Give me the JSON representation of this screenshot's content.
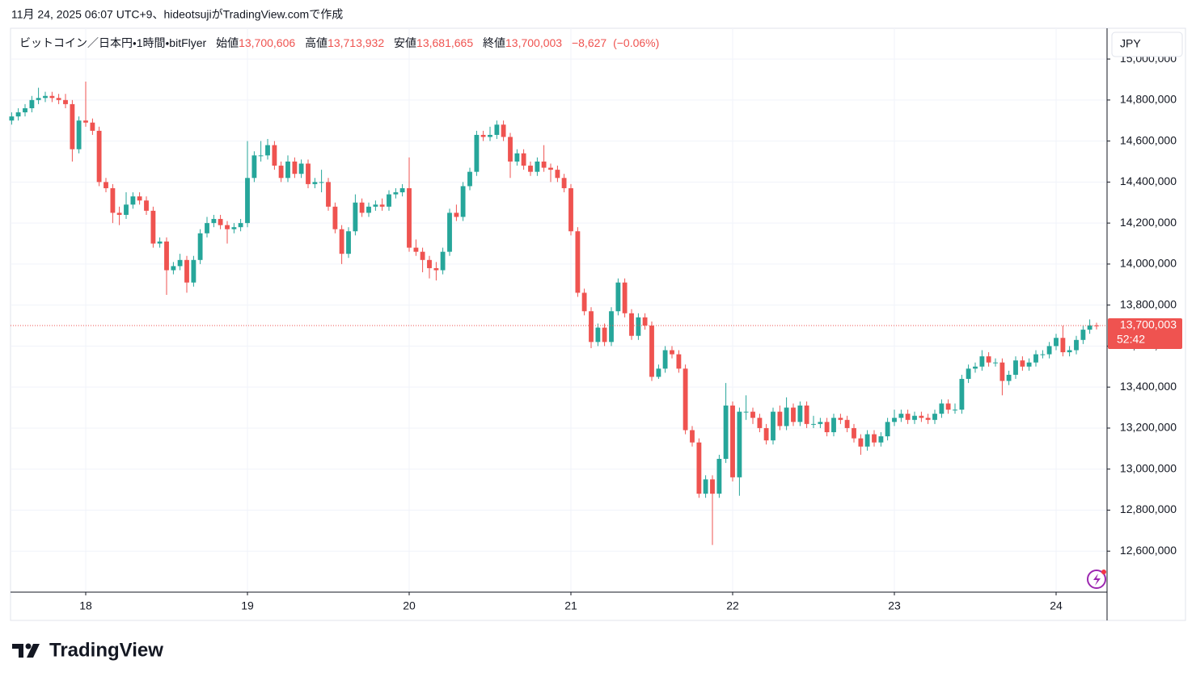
{
  "header": "11月 24, 2025 06:07 UTC+9、hideotsujiがTradingView.comで作成",
  "watermark": "TradingView",
  "chart_data": {
    "type": "candlestick",
    "symbol": "ビットコイン／日本円・1時間・bitFlyer",
    "legend": [
      {
        "name": "始値",
        "value": 13700606,
        "label": "13,700,606"
      },
      {
        "name": "高値",
        "value": 13713932,
        "label": "13,713,932"
      },
      {
        "name": "安値",
        "value": 13681665,
        "label": "13,681,665"
      },
      {
        "name": "終値",
        "value": 13700003,
        "label": "13,700,003"
      }
    ],
    "change": {
      "value": -8627,
      "label": "−8,627"
    },
    "change_pct": {
      "value": -0.06,
      "label": "(−0.06%)"
    },
    "currency": "JPY",
    "current_price": {
      "value": 13700003,
      "label": "13,700,003"
    },
    "countdown": "52:42",
    "up_color": "#26a69a",
    "down_color": "#ef5350",
    "grid": true,
    "xlim": [
      17.535,
      24.315
    ],
    "xticks": [
      18,
      19,
      20,
      21,
      22,
      23,
      24
    ],
    "ylim": [
      12400000,
      15150000
    ],
    "yticks": [
      {
        "value": 12600000,
        "label": "12,600,000"
      },
      {
        "value": 12800000,
        "label": "12,800,000"
      },
      {
        "value": 13000000,
        "label": "13,000,000"
      },
      {
        "value": 13200000,
        "label": "13,200,000"
      },
      {
        "value": 13400000,
        "label": "13,400,000"
      },
      {
        "value": 13600000,
        "label": "13,600,000"
      },
      {
        "value": 13800000,
        "label": "13,800,000"
      },
      {
        "value": 14000000,
        "label": "14,000,000"
      },
      {
        "value": 14200000,
        "label": "14,200,000"
      },
      {
        "value": 14400000,
        "label": "14,400,000"
      },
      {
        "value": 14600000,
        "label": "14,600,000"
      },
      {
        "value": 14800000,
        "label": "14,800,000"
      },
      {
        "value": 15000000,
        "label": "15,000,000"
      }
    ],
    "x": [
      17.542,
      17.583,
      17.625,
      17.667,
      17.708,
      17.75,
      17.792,
      17.833,
      17.875,
      17.917,
      17.958,
      18,
      18.042,
      18.083,
      18.125,
      18.167,
      18.208,
      18.25,
      18.292,
      18.333,
      18.375,
      18.417,
      18.458,
      18.5,
      18.542,
      18.583,
      18.625,
      18.667,
      18.708,
      18.75,
      18.792,
      18.833,
      18.875,
      18.917,
      18.958,
      19,
      19.042,
      19.083,
      19.125,
      19.167,
      19.208,
      19.25,
      19.292,
      19.333,
      19.375,
      19.417,
      19.458,
      19.5,
      19.542,
      19.583,
      19.625,
      19.667,
      19.708,
      19.75,
      19.792,
      19.833,
      19.875,
      19.917,
      19.958,
      20,
      20.042,
      20.083,
      20.125,
      20.167,
      20.208,
      20.25,
      20.292,
      20.333,
      20.375,
      20.417,
      20.458,
      20.5,
      20.542,
      20.583,
      20.625,
      20.667,
      20.708,
      20.75,
      20.792,
      20.833,
      20.875,
      20.917,
      20.958,
      21,
      21.042,
      21.083,
      21.125,
      21.167,
      21.208,
      21.25,
      21.292,
      21.333,
      21.375,
      21.417,
      21.458,
      21.5,
      21.542,
      21.583,
      21.625,
      21.667,
      21.708,
      21.75,
      21.792,
      21.833,
      21.875,
      21.917,
      21.958,
      22,
      22.042,
      22.083,
      22.125,
      22.167,
      22.208,
      22.25,
      22.292,
      22.333,
      22.375,
      22.417,
      22.458,
      22.5,
      22.542,
      22.583,
      22.625,
      22.667,
      22.708,
      22.75,
      22.792,
      22.833,
      22.875,
      22.917,
      22.958,
      23,
      23.042,
      23.083,
      23.125,
      23.167,
      23.208,
      23.25,
      23.292,
      23.333,
      23.375,
      23.417,
      23.458,
      23.5,
      23.542,
      23.583,
      23.625,
      23.667,
      23.708,
      23.75,
      23.792,
      23.833,
      23.875,
      23.917,
      23.958,
      24,
      24.042,
      24.083,
      24.125,
      24.167,
      24.208,
      24.25
    ],
    "open": [
      14700000,
      14720000,
      14740000,
      14760000,
      14800000,
      14810000,
      14820000,
      14810000,
      14800000,
      14780000,
      14560000,
      14700000,
      14690000,
      14650000,
      14400000,
      14370000,
      14250000,
      14240000,
      14290000,
      14330000,
      14310000,
      14260000,
      14100000,
      14110000,
      13970000,
      13990000,
      14020000,
      13910000,
      14020000,
      14150000,
      14200000,
      14220000,
      14190000,
      14170000,
      14180000,
      14200000,
      14420000,
      14530000,
      14530000,
      14580000,
      14480000,
      14420000,
      14500000,
      14440000,
      14490000,
      14390000,
      14400000,
      14400000,
      14280000,
      14170000,
      14050000,
      14160000,
      14300000,
      14250000,
      14280000,
      14290000,
      14280000,
      14340000,
      14350000,
      14370000,
      14080000,
      14060000,
      14020000,
      13980000,
      13970000,
      14060000,
      14250000,
      14230000,
      14380000,
      14450000,
      14630000,
      14620000,
      14630000,
      14680000,
      14620000,
      14500000,
      14540000,
      14480000,
      14450000,
      14500000,
      14470000,
      14460000,
      14420000,
      14370000,
      14160000,
      13860000,
      13770000,
      13620000,
      13690000,
      13620000,
      13770000,
      13910000,
      13760000,
      13650000,
      13740000,
      13700000,
      13450000,
      13490000,
      13580000,
      13560000,
      13490000,
      13190000,
      13130000,
      12880000,
      12950000,
      12880000,
      13050000,
      13310000,
      12960000,
      13280000,
      13280000,
      13250000,
      13200000,
      13140000,
      13280000,
      13210000,
      13300000,
      13230000,
      13310000,
      13220000,
      13220000,
      13230000,
      13180000,
      13250000,
      13240000,
      13200000,
      13150000,
      13110000,
      13170000,
      13130000,
      13160000,
      13230000,
      13250000,
      13270000,
      13240000,
      13260000,
      13250000,
      13240000,
      13270000,
      13320000,
      13290000,
      13290000,
      13440000,
      13490000,
      13500000,
      13550000,
      13520000,
      13520000,
      13430000,
      13460000,
      13530000,
      13500000,
      13520000,
      13560000,
      13560000,
      13600000,
      13640000,
      13570000,
      13580000,
      13630000,
      13680000,
      13700606
    ],
    "high": [
      14740000,
      14760000,
      14780000,
      14820000,
      14860000,
      14840000,
      14840000,
      14830000,
      14830000,
      14800000,
      14720000,
      14890000,
      14710000,
      14670000,
      14420000,
      14390000,
      14280000,
      14350000,
      14350000,
      14350000,
      14330000,
      14280000,
      14130000,
      14130000,
      14010000,
      14050000,
      14040000,
      14040000,
      14170000,
      14230000,
      14240000,
      14240000,
      14210000,
      14200000,
      14220000,
      14600000,
      14550000,
      14600000,
      14610000,
      14600000,
      14500000,
      14530000,
      14520000,
      14510000,
      14510000,
      14420000,
      14460000,
      14420000,
      14300000,
      14190000,
      14180000,
      14340000,
      14320000,
      14300000,
      14310000,
      14320000,
      14360000,
      14370000,
      14390000,
      14520000,
      14120000,
      14080000,
      14040000,
      14010000,
      14080000,
      14270000,
      14290000,
      14400000,
      14470000,
      14650000,
      14650000,
      14670000,
      14700000,
      14700000,
      14640000,
      14560000,
      14560000,
      14500000,
      14520000,
      14580000,
      14490000,
      14480000,
      14440000,
      14390000,
      14180000,
      13880000,
      13790000,
      13710000,
      13710000,
      13790000,
      13930000,
      13930000,
      13780000,
      13760000,
      13760000,
      13720000,
      13510000,
      13600000,
      13600000,
      13580000,
      13510000,
      13210000,
      13150000,
      12970000,
      12970000,
      13070000,
      13420000,
      13330000,
      13300000,
      13360000,
      13300000,
      13270000,
      13220000,
      13300000,
      13310000,
      13350000,
      13320000,
      13330000,
      13330000,
      13260000,
      13250000,
      13250000,
      13270000,
      13270000,
      13260000,
      13220000,
      13170000,
      13190000,
      13190000,
      13180000,
      13250000,
      13290000,
      13290000,
      13290000,
      13280000,
      13280000,
      13270000,
      13290000,
      13340000,
      13340000,
      13320000,
      13460000,
      13510000,
      13520000,
      13580000,
      13570000,
      13540000,
      13540000,
      13480000,
      13550000,
      13550000,
      13540000,
      13580000,
      13580000,
      13620000,
      13660000,
      13700000,
      13600000,
      13650000,
      13700000,
      13730000,
      13713932
    ],
    "low": [
      14680000,
      14700000,
      14720000,
      14740000,
      14780000,
      14790000,
      14790000,
      14780000,
      14760000,
      14500000,
      14540000,
      14670000,
      14630000,
      14380000,
      14350000,
      14200000,
      14190000,
      14220000,
      14270000,
      14290000,
      14240000,
      14080000,
      14080000,
      13850000,
      13950000,
      13970000,
      13860000,
      13890000,
      14000000,
      14130000,
      14180000,
      14170000,
      14100000,
      14150000,
      14160000,
      14180000,
      14400000,
      14500000,
      14510000,
      14460000,
      14400000,
      14400000,
      14420000,
      14420000,
      14370000,
      14370000,
      14350000,
      14260000,
      14150000,
      14000000,
      14030000,
      14140000,
      14230000,
      14230000,
      14260000,
      14260000,
      14260000,
      14320000,
      14330000,
      14060000,
      14040000,
      13960000,
      13930000,
      13920000,
      13950000,
      14040000,
      14210000,
      14210000,
      14360000,
      14430000,
      14600000,
      14600000,
      14610000,
      14600000,
      14420000,
      14480000,
      14460000,
      14430000,
      14430000,
      14450000,
      14400000,
      14400000,
      14350000,
      14140000,
      13840000,
      13750000,
      13590000,
      13600000,
      13600000,
      13600000,
      13750000,
      13740000,
      13630000,
      13630000,
      13680000,
      13430000,
      13440000,
      13470000,
      13540000,
      13470000,
      13170000,
      13110000,
      12860000,
      12860000,
      12630000,
      12860000,
      13030000,
      12940000,
      12870000,
      13240000,
      13220000,
      13180000,
      13120000,
      13120000,
      13190000,
      13190000,
      13210000,
      13210000,
      13200000,
      13200000,
      13200000,
      13160000,
      13160000,
      13220000,
      13180000,
      13130000,
      13070000,
      13090000,
      13110000,
      13110000,
      13140000,
      13210000,
      13230000,
      13220000,
      13220000,
      13230000,
      13220000,
      13220000,
      13250000,
      13270000,
      13270000,
      13270000,
      13420000,
      13470000,
      13480000,
      13500000,
      13500000,
      13360000,
      13410000,
      13440000,
      13480000,
      13480000,
      13500000,
      13540000,
      13540000,
      13580000,
      13550000,
      13550000,
      13560000,
      13610000,
      13660000,
      13681665
    ],
    "close": [
      14720000,
      14740000,
      14760000,
      14800000,
      14810000,
      14820000,
      14810000,
      14800000,
      14780000,
      14560000,
      14700000,
      14690000,
      14650000,
      14400000,
      14370000,
      14250000,
      14240000,
      14290000,
      14330000,
      14310000,
      14260000,
      14100000,
      14110000,
      13970000,
      13990000,
      14020000,
      13910000,
      14020000,
      14150000,
      14200000,
      14220000,
      14190000,
      14170000,
      14180000,
      14200000,
      14420000,
      14530000,
      14530000,
      14580000,
      14480000,
      14420000,
      14500000,
      14440000,
      14490000,
      14390000,
      14400000,
      14400000,
      14280000,
      14170000,
      14050000,
      14160000,
      14300000,
      14250000,
      14280000,
      14290000,
      14280000,
      14340000,
      14350000,
      14370000,
      14080000,
      14060000,
      14020000,
      13980000,
      13970000,
      14060000,
      14250000,
      14230000,
      14380000,
      14450000,
      14630000,
      14620000,
      14630000,
      14680000,
      14620000,
      14500000,
      14540000,
      14480000,
      14450000,
      14500000,
      14470000,
      14460000,
      14420000,
      14370000,
      14160000,
      13860000,
      13770000,
      13620000,
      13690000,
      13620000,
      13770000,
      13910000,
      13760000,
      13650000,
      13740000,
      13700000,
      13450000,
      13490000,
      13580000,
      13560000,
      13490000,
      13190000,
      13130000,
      12880000,
      12950000,
      12880000,
      13050000,
      13310000,
      12960000,
      13280000,
      13280000,
      13250000,
      13200000,
      13140000,
      13280000,
      13210000,
      13300000,
      13230000,
      13310000,
      13220000,
      13220000,
      13230000,
      13180000,
      13250000,
      13240000,
      13200000,
      13150000,
      13110000,
      13170000,
      13130000,
      13160000,
      13230000,
      13250000,
      13270000,
      13240000,
      13260000,
      13250000,
      13240000,
      13270000,
      13320000,
      13290000,
      13290000,
      13440000,
      13490000,
      13500000,
      13550000,
      13520000,
      13520000,
      13430000,
      13460000,
      13530000,
      13500000,
      13520000,
      13560000,
      13560000,
      13600000,
      13640000,
      13570000,
      13580000,
      13630000,
      13680000,
      13700606,
      13700003
    ]
  }
}
